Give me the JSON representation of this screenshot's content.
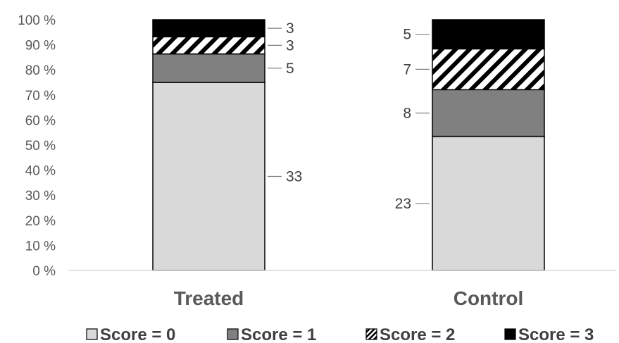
{
  "chart_data": {
    "type": "bar",
    "stacked": "percent",
    "categories": [
      "Treated",
      "Control"
    ],
    "series": [
      {
        "name": "Score = 0",
        "values": [
          33,
          23
        ],
        "color": "#d9d9d9",
        "pattern": "solid"
      },
      {
        "name": "Score = 1",
        "values": [
          5,
          8
        ],
        "color": "#808080",
        "pattern": "solid"
      },
      {
        "name": "Score = 2",
        "values": [
          3,
          7
        ],
        "color": "#000000",
        "pattern": "diagonal-stripes"
      },
      {
        "name": "Score = 3",
        "values": [
          3,
          5
        ],
        "color": "#000000",
        "pattern": "solid"
      }
    ],
    "y_ticks": [
      "0 %",
      "10 %",
      "20 %",
      "30 %",
      "40 %",
      "50 %",
      "60 %",
      "70 %",
      "80 %",
      "90 %",
      "100 %"
    ],
    "ylim": [
      0,
      100
    ],
    "grid": false,
    "legend": "bottom"
  }
}
